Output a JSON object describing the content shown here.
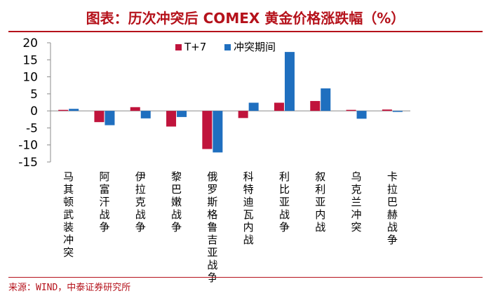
{
  "header": {
    "title": "图表：历次冲突后 COMEX 黄金价格涨跌幅（%）"
  },
  "footer": {
    "source": "来源：WIND，中泰证券研究所"
  },
  "colors": {
    "accent": "#b5121b",
    "series_t7": "#c0143c",
    "series_period": "#1f6fbf"
  },
  "chart_data": {
    "type": "bar",
    "title": "历次冲突后 COMEX 黄金价格涨跌幅（%）",
    "xlabel": "",
    "ylabel": "",
    "ylim": [
      -15,
      20
    ],
    "yticks": [
      20,
      15,
      10,
      5,
      0,
      -5,
      -10,
      -15
    ],
    "grid": false,
    "legend_position": "top-center",
    "categories": [
      "马其顿武装冲突",
      "阿富汗战争",
      "伊拉克战争",
      "黎巴嫩战争",
      "俄罗斯格鲁吉亚战争",
      "科特迪瓦内战",
      "利比亚战争",
      "叙利亚内战",
      "乌克兰冲突",
      "卡拉巴赫战争"
    ],
    "series": [
      {
        "name": "T+7",
        "color": "#c0143c",
        "values": [
          0.3,
          -3.3,
          1.1,
          -4.6,
          -11.2,
          -2.1,
          2.4,
          2.9,
          0.3,
          0.4
        ]
      },
      {
        "name": "冲突期间",
        "color": "#1f6fbf",
        "values": [
          0.6,
          -4.2,
          -2.2,
          -1.8,
          -12.2,
          2.4,
          17.3,
          6.6,
          -2.3,
          -0.3
        ]
      }
    ]
  }
}
